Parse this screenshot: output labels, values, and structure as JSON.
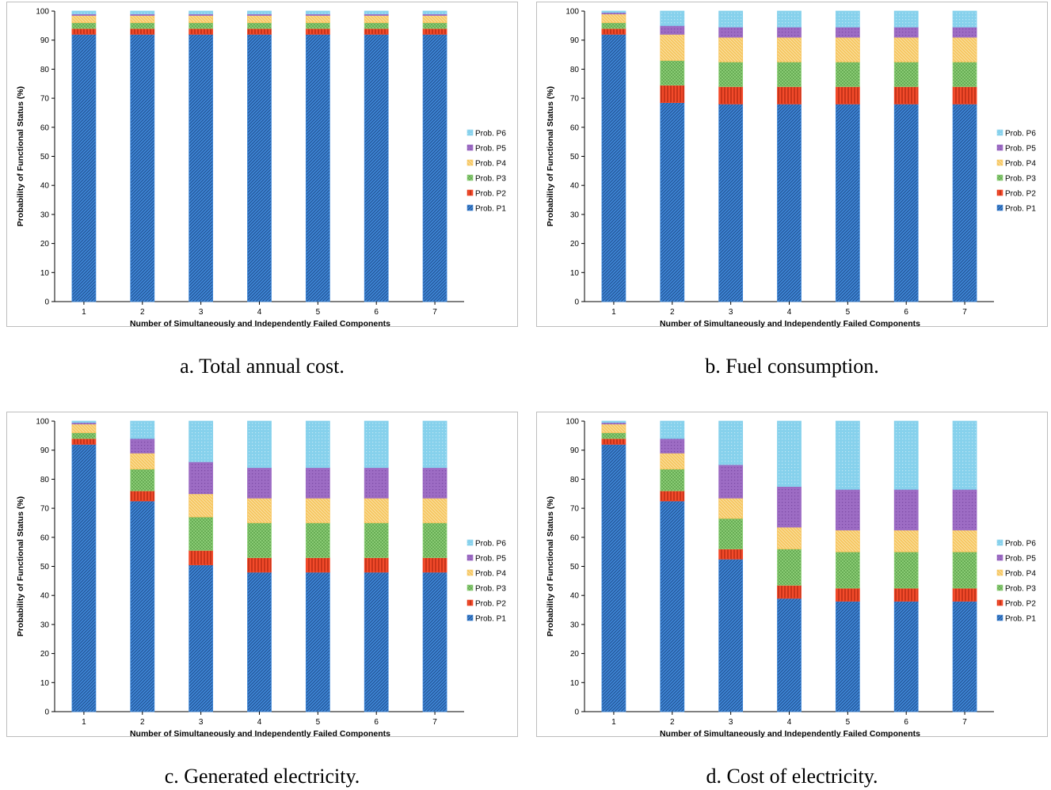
{
  "colors": {
    "P1": "#3f86d6",
    "P2": "#f24a2a",
    "P3": "#8fd17a",
    "P4": "#f7c55e",
    "P5": "#9d6cc4",
    "P6": "#86d1ec"
  },
  "chart_data": [
    {
      "type": "bar",
      "stacked": true,
      "caption": "a. Total annual cost.",
      "xlabel": "Number of Simultaneously and Independently Failed Components",
      "ylabel": "Probability of Functional Status (%)",
      "ylim": [
        0,
        100
      ],
      "yticks": [
        0,
        10,
        20,
        30,
        40,
        50,
        60,
        70,
        80,
        90,
        100
      ],
      "legend_position": "right",
      "categories": [
        "1",
        "2",
        "3",
        "4",
        "5",
        "6",
        "7"
      ],
      "series": [
        {
          "name": "Prob. P1",
          "values": [
            92,
            92,
            92,
            92,
            92,
            92,
            92
          ]
        },
        {
          "name": "Prob. P2",
          "values": [
            2,
            2,
            2,
            2,
            2,
            2,
            2
          ]
        },
        {
          "name": "Prob. P3",
          "values": [
            2,
            2,
            2,
            2,
            2,
            2,
            2
          ]
        },
        {
          "name": "Prob. P4",
          "values": [
            2.5,
            2.5,
            2.5,
            2.5,
            2.5,
            2.5,
            2.5
          ]
        },
        {
          "name": "Prob. P5",
          "values": [
            0.5,
            0.5,
            0.5,
            0.5,
            0.5,
            0.5,
            0.5
          ]
        },
        {
          "name": "Prob. P6",
          "values": [
            1,
            1,
            1,
            1,
            1,
            1,
            1
          ]
        }
      ]
    },
    {
      "type": "bar",
      "stacked": true,
      "caption": "b. Fuel consumption.",
      "xlabel": "Number of Simultaneously and Independently Failed Components",
      "ylabel": "Probability of Functional Status (%)",
      "ylim": [
        0,
        100
      ],
      "yticks": [
        0,
        10,
        20,
        30,
        40,
        50,
        60,
        70,
        80,
        90,
        100
      ],
      "legend_position": "right",
      "categories": [
        "1",
        "2",
        "3",
        "4",
        "5",
        "6",
        "7"
      ],
      "series": [
        {
          "name": "Prob. P1",
          "values": [
            92,
            68.5,
            68,
            68,
            68,
            68,
            68
          ]
        },
        {
          "name": "Prob. P2",
          "values": [
            2,
            6,
            6,
            6,
            6,
            6,
            6
          ]
        },
        {
          "name": "Prob. P3",
          "values": [
            2,
            8.5,
            8.5,
            8.5,
            8.5,
            8.5,
            8.5
          ]
        },
        {
          "name": "Prob. P4",
          "values": [
            3,
            9,
            8.5,
            8.5,
            8.5,
            8.5,
            8.5
          ]
        },
        {
          "name": "Prob. P5",
          "values": [
            0.5,
            3,
            3.5,
            3.5,
            3.5,
            3.5,
            3.5
          ]
        },
        {
          "name": "Prob. P6",
          "values": [
            0.5,
            5,
            5.5,
            5.5,
            5.5,
            5.5,
            5.5
          ]
        }
      ]
    },
    {
      "type": "bar",
      "stacked": true,
      "caption": "c. Generated electricity.",
      "xlabel": "Number of Simultaneously and Independently Failed Components",
      "ylabel": "Probability of Functional Status (%)",
      "ylim": [
        0,
        100
      ],
      "yticks": [
        0,
        10,
        20,
        30,
        40,
        50,
        60,
        70,
        80,
        90,
        100
      ],
      "legend_position": "right",
      "categories": [
        "1",
        "2",
        "3",
        "4",
        "5",
        "6",
        "7"
      ],
      "series": [
        {
          "name": "Prob. P1",
          "values": [
            92,
            72.5,
            50.5,
            48,
            48,
            48,
            48
          ]
        },
        {
          "name": "Prob. P2",
          "values": [
            2,
            3.5,
            5,
            5,
            5,
            5,
            5
          ]
        },
        {
          "name": "Prob. P3",
          "values": [
            2,
            7.5,
            11.5,
            12,
            12,
            12,
            12
          ]
        },
        {
          "name": "Prob. P4",
          "values": [
            3,
            5.5,
            8,
            8.5,
            8.5,
            8.5,
            8.5
          ]
        },
        {
          "name": "Prob. P5",
          "values": [
            0.5,
            5,
            11,
            10.5,
            10.5,
            10.5,
            10.5
          ]
        },
        {
          "name": "Prob. P6",
          "values": [
            0.5,
            6,
            14,
            16,
            16,
            16,
            16
          ]
        }
      ]
    },
    {
      "type": "bar",
      "stacked": true,
      "caption": "d. Cost of electricity.",
      "xlabel": "Number of Simultaneously and Independently Failed Components",
      "ylabel": "Probability of Functional Status (%)",
      "ylim": [
        0,
        100
      ],
      "yticks": [
        0,
        10,
        20,
        30,
        40,
        50,
        60,
        70,
        80,
        90,
        100
      ],
      "legend_position": "right",
      "categories": [
        "1",
        "2",
        "3",
        "4",
        "5",
        "6",
        "7"
      ],
      "series": [
        {
          "name": "Prob. P1",
          "values": [
            92,
            72.5,
            52.5,
            39,
            38,
            38,
            38
          ]
        },
        {
          "name": "Prob. P2",
          "values": [
            2,
            3.5,
            3.5,
            4.5,
            4.5,
            4.5,
            4.5
          ]
        },
        {
          "name": "Prob. P3",
          "values": [
            2,
            7.5,
            10.5,
            12.5,
            12.5,
            12.5,
            12.5
          ]
        },
        {
          "name": "Prob. P4",
          "values": [
            3,
            5.5,
            7,
            7.5,
            7.5,
            7.5,
            7.5
          ]
        },
        {
          "name": "Prob. P5",
          "values": [
            0.5,
            5,
            11.5,
            14,
            14,
            14,
            14
          ]
        },
        {
          "name": "Prob. P6",
          "values": [
            0.5,
            6,
            15,
            22.5,
            23.5,
            23.5,
            23.5
          ]
        }
      ]
    }
  ]
}
